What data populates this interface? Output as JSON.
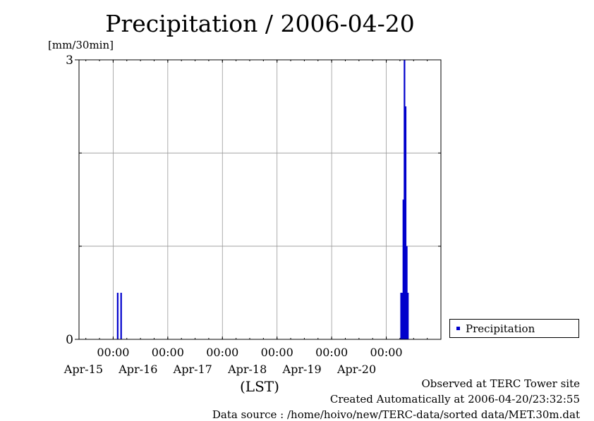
{
  "chart_data": {
    "type": "bar",
    "title": "Precipitation / 2006-04-20",
    "ylabel": "[mm/30min]",
    "xlabel": "(LST)",
    "ylim": [
      0,
      3
    ],
    "yticks": [
      0,
      3
    ],
    "xlim": [
      "2006-04-14 09:00",
      "2006-04-21 00:00"
    ],
    "xticks": [
      {
        "time": "2006-04-15 00:00",
        "time_label": "00:00",
        "date_label": "Apr-15"
      },
      {
        "time": "2006-04-16 00:00",
        "time_label": "00:00",
        "date_label": "Apr-16"
      },
      {
        "time": "2006-04-17 00:00",
        "time_label": "00:00",
        "date_label": "Apr-17"
      },
      {
        "time": "2006-04-18 00:00",
        "time_label": "00:00",
        "date_label": "Apr-18"
      },
      {
        "time": "2006-04-19 00:00",
        "time_label": "00:00",
        "date_label": "Apr-19"
      },
      {
        "time": "2006-04-20 00:00",
        "time_label": "00:00",
        "date_label": "Apr-20"
      }
    ],
    "grid": true,
    "legend_position": "right",
    "series": [
      {
        "name": "Precipitation",
        "color": "#0000cc",
        "points": [
          {
            "x": "2006-04-15 02:00",
            "y": 0.5
          },
          {
            "x": "2006-04-15 03:30",
            "y": 0.5
          },
          {
            "x": "2006-04-20 06:30",
            "y": 0.5
          },
          {
            "x": "2006-04-20 07:00",
            "y": 0.5
          },
          {
            "x": "2006-04-20 07:30",
            "y": 1.5
          },
          {
            "x": "2006-04-20 08:00",
            "y": 3.0
          },
          {
            "x": "2006-04-20 08:30",
            "y": 2.5
          },
          {
            "x": "2006-04-20 09:00",
            "y": 1.0
          },
          {
            "x": "2006-04-20 09:30",
            "y": 0.5
          }
        ]
      }
    ]
  },
  "footer": {
    "observed": "Observed at TERC Tower site",
    "created": "Created Automatically at 2006-04-20/23:32:55",
    "source": "Data source : /home/hoivo/new/TERC-data/sorted  data/MET.30m.dat"
  }
}
